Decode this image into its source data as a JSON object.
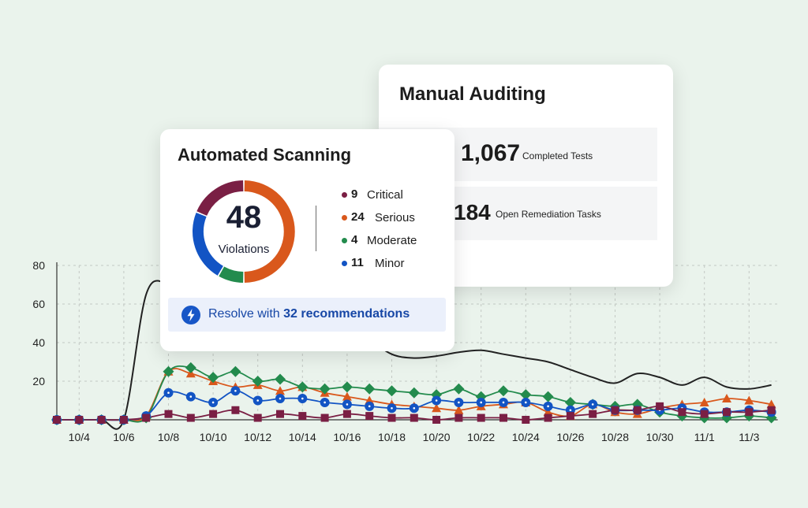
{
  "chart_data": {
    "type": "line",
    "title": "",
    "xlabel": "",
    "ylabel": "",
    "ylim": [
      0,
      80
    ],
    "yticks": [
      20,
      40,
      60,
      80
    ],
    "grid": true,
    "legend": "none",
    "categories": [
      "10/3",
      "10/4",
      "10/5",
      "10/6",
      "10/7",
      "10/8",
      "10/9",
      "10/10",
      "10/11",
      "10/12",
      "10/13",
      "10/14",
      "10/15",
      "10/16",
      "10/17",
      "10/18",
      "10/19",
      "10/20",
      "10/21",
      "10/22",
      "10/23",
      "10/24",
      "10/25",
      "10/26",
      "10/27",
      "10/28",
      "10/29",
      "10/30",
      "10/31",
      "11/1",
      "11/2",
      "11/3",
      "11/4"
    ],
    "tick_labels": [
      "10/4",
      "10/6",
      "10/8",
      "10/10",
      "10/12",
      "10/14",
      "10/16",
      "10/18",
      "10/20",
      "10/22",
      "10/24",
      "10/26",
      "10/28",
      "10/30",
      "11/1",
      "11/3"
    ],
    "series": [
      {
        "color": "#222222",
        "marker": "none",
        "values": [
          0,
          0,
          0,
          0,
          65,
          71,
          71,
          71,
          71,
          71,
          71,
          71,
          70,
          52,
          42,
          34,
          32,
          33,
          35,
          36,
          34,
          32,
          30,
          26,
          22,
          19,
          24,
          22,
          18,
          22,
          17,
          16,
          18
        ]
      },
      {
        "color": "#d9581c",
        "marker": "triangle",
        "values": [
          0,
          0,
          0,
          0,
          2,
          25,
          24,
          20,
          17,
          18,
          15,
          17,
          14,
          12,
          10,
          8,
          7,
          6,
          5,
          7,
          8,
          9,
          4,
          2,
          8,
          4,
          3,
          6,
          8,
          9,
          11,
          10,
          8
        ]
      },
      {
        "color": "#238b4d",
        "marker": "diamond",
        "values": [
          0,
          0,
          0,
          0,
          1,
          25,
          27,
          22,
          25,
          20,
          21,
          17,
          16,
          17,
          16,
          15,
          14,
          13,
          16,
          12,
          15,
          13,
          12,
          9,
          8,
          7,
          8,
          4,
          2,
          1,
          1,
          2,
          1
        ]
      },
      {
        "color": "#1254c4",
        "marker": "circle",
        "values": [
          0,
          0,
          0,
          0,
          2,
          14,
          12,
          9,
          15,
          10,
          11,
          11,
          9,
          8,
          7,
          6,
          6,
          10,
          9,
          9,
          9,
          9,
          7,
          5,
          8,
          5,
          5,
          5,
          6,
          4,
          4,
          5,
          4
        ]
      },
      {
        "color": "#7a1f44",
        "marker": "square",
        "values": [
          0,
          0,
          0,
          0,
          1,
          3,
          1,
          3,
          5,
          1,
          3,
          2,
          1,
          3,
          2,
          1,
          1,
          0,
          1,
          1,
          1,
          0,
          1,
          2,
          3,
          5,
          5,
          7,
          4,
          3,
          4,
          4,
          5
        ]
      }
    ]
  },
  "manual_auditing": {
    "title": "Manual Auditing",
    "completed_tests": {
      "value": "1,067",
      "label": "Completed Tests"
    },
    "open_tasks": {
      "value": "184",
      "label": "Open Remediation Tasks"
    }
  },
  "automated_scanning": {
    "title": "Automated Scanning",
    "total": "48",
    "total_label": "Violations",
    "breakdown": [
      {
        "count": "9",
        "label": "Critical",
        "value": 9,
        "color": "#7a1f44"
      },
      {
        "count": "24",
        "label": "Serious",
        "value": 24,
        "color": "#d9581c"
      },
      {
        "count": "4",
        "label": "Moderate",
        "value": 4,
        "color": "#238b4d"
      },
      {
        "count": "11",
        "label": "Minor",
        "value": 11,
        "color": "#1254c4"
      }
    ],
    "resolve_prefix": "Resolve with ",
    "resolve_emphasis": "32 recommendations",
    "resolve_icon": "lightning-bolt-icon"
  }
}
